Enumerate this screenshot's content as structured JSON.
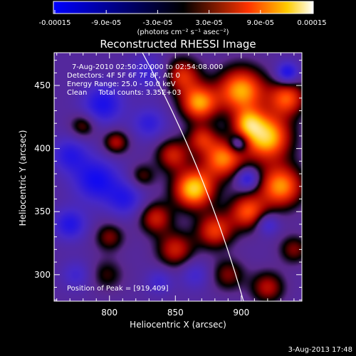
{
  "chart_data": {
    "type": "heatmap",
    "title": "Reconstructed RHESSI Image",
    "xlabel": "Heliocentric X (arcsec)",
    "ylabel": "Heliocentric Y (arcsec)",
    "xlim": [
      758,
      946
    ],
    "ylim": [
      279,
      476
    ],
    "x_ticks": [
      800,
      850,
      900
    ],
    "y_ticks": [
      300,
      350,
      400,
      450
    ],
    "colorbar": {
      "label": "(photons cm⁻² s⁻¹ asec⁻²)",
      "range": [
        -0.00015,
        0.00015
      ],
      "ticks": [
        "-0.00015",
        "-9.0e-05",
        "-3.0e-05",
        "3.0e-05",
        "9.0e-05",
        "0.00015"
      ]
    },
    "annotations": [
      "7-Aug-2010 02:50:20.000 to 02:54:08.000",
      "Detectors: 4F 5F 6F 7F 8F, Att 0",
      "Energy Range: 25.0 - 50.0 keV",
      "Clean     Total counts: 3.35E+03"
    ],
    "peak_label": "Position of Peak = [919,409]",
    "sources": [
      {
        "x": 864,
        "y": 368,
        "amp": 1.0,
        "sigma": 11
      },
      {
        "x": 919,
        "y": 409,
        "amp": 1.0,
        "sigma": 13
      },
      {
        "x": 900,
        "y": 446,
        "amp": 0.9,
        "sigma": 13
      },
      {
        "x": 868,
        "y": 436,
        "amp": 0.85,
        "sigma": 10
      },
      {
        "x": 886,
        "y": 392,
        "amp": 0.8,
        "sigma": 11
      },
      {
        "x": 855,
        "y": 458,
        "amp": 0.6,
        "sigma": 10
      },
      {
        "x": 935,
        "y": 440,
        "amp": 0.7,
        "sigma": 10
      },
      {
        "x": 930,
        "y": 370,
        "amp": 0.85,
        "sigma": 12
      },
      {
        "x": 905,
        "y": 350,
        "amp": 0.7,
        "sigma": 10
      },
      {
        "x": 880,
        "y": 335,
        "amp": 0.65,
        "sigma": 10
      },
      {
        "x": 850,
        "y": 320,
        "amp": 0.55,
        "sigma": 10
      },
      {
        "x": 835,
        "y": 345,
        "amp": 0.55,
        "sigma": 9
      },
      {
        "x": 848,
        "y": 395,
        "amp": 0.55,
        "sigma": 9
      },
      {
        "x": 870,
        "y": 408,
        "amp": 0.5,
        "sigma": 8
      },
      {
        "x": 800,
        "y": 330,
        "amp": 0.4,
        "sigma": 8
      },
      {
        "x": 780,
        "y": 418,
        "amp": 0.4,
        "sigma": 7
      },
      {
        "x": 805,
        "y": 405,
        "amp": 0.5,
        "sigma": 7
      },
      {
        "x": 825,
        "y": 378,
        "amp": 0.35,
        "sigma": 7
      },
      {
        "x": 920,
        "y": 290,
        "amp": 0.5,
        "sigma": 9
      },
      {
        "x": 890,
        "y": 300,
        "amp": 0.4,
        "sigma": 9
      },
      {
        "x": 798,
        "y": 300,
        "amp": 0.3,
        "sigma": 9
      },
      {
        "x": 940,
        "y": 320,
        "amp": 0.4,
        "sigma": 8
      },
      {
        "x": 905,
        "y": 420,
        "amp": 0.55,
        "sigma": 8
      },
      {
        "x": 790,
        "y": 375,
        "amp": -0.6,
        "sigma": 12
      },
      {
        "x": 795,
        "y": 435,
        "amp": -0.55,
        "sigma": 11
      },
      {
        "x": 770,
        "y": 395,
        "amp": -0.45,
        "sigma": 10
      },
      {
        "x": 812,
        "y": 360,
        "amp": -0.45,
        "sigma": 10
      },
      {
        "x": 770,
        "y": 340,
        "amp": -0.5,
        "sigma": 9
      },
      {
        "x": 830,
        "y": 420,
        "amp": -0.4,
        "sigma": 9
      },
      {
        "x": 830,
        "y": 460,
        "amp": -0.35,
        "sigma": 10
      },
      {
        "x": 905,
        "y": 376,
        "amp": -0.55,
        "sigma": 6
      },
      {
        "x": 935,
        "y": 460,
        "amp": -0.6,
        "sigma": 6
      },
      {
        "x": 898,
        "y": 404,
        "amp": -0.5,
        "sigma": 5
      },
      {
        "x": 920,
        "y": 340,
        "amp": -0.4,
        "sigma": 6
      },
      {
        "x": 865,
        "y": 300,
        "amp": -0.3,
        "sigma": 8
      },
      {
        "x": 775,
        "y": 300,
        "amp": -0.3,
        "sigma": 8
      },
      {
        "x": 838,
        "y": 295,
        "amp": -0.3,
        "sigma": 7
      }
    ]
  },
  "footer": {
    "timestamp": "3-Aug-2013 17:48"
  }
}
